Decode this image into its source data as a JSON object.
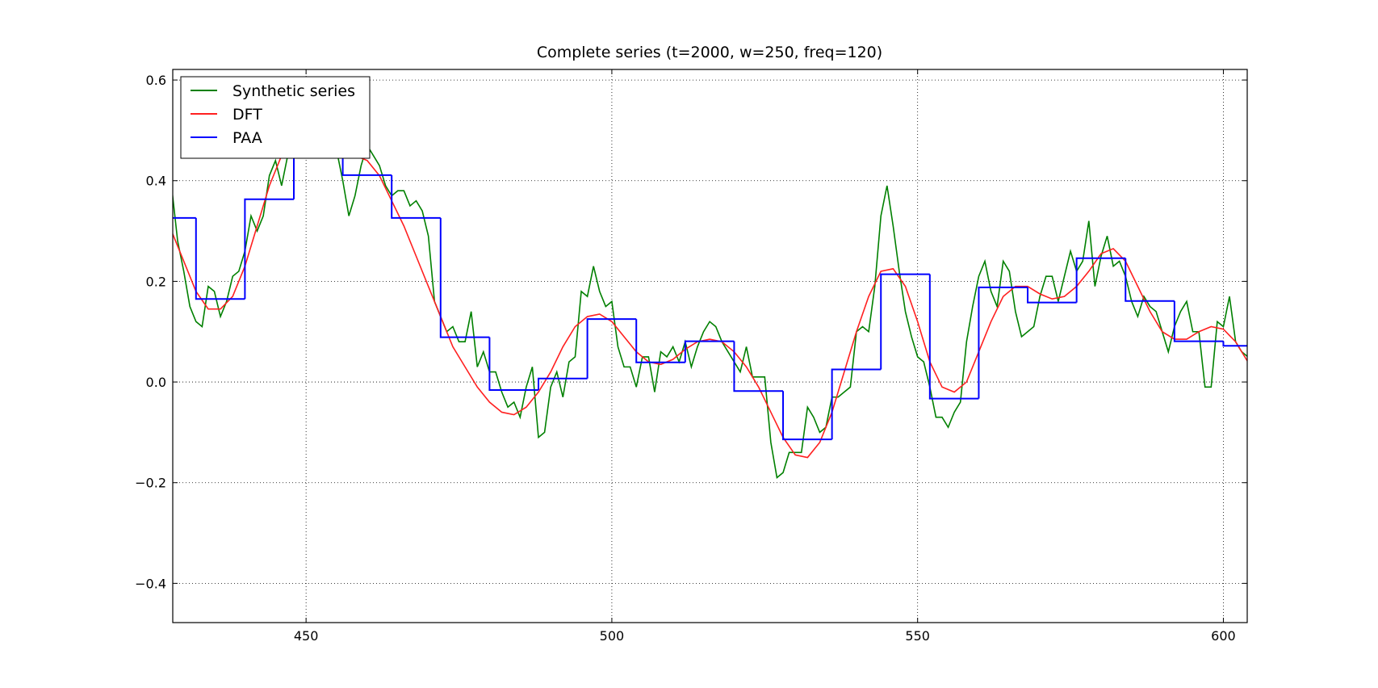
{
  "chart_data": {
    "type": "line",
    "title": "Complete series (t=2000, w=250, freq=120)",
    "xlim": [
      428.2,
      603.9
    ],
    "ylim": [
      -0.478,
      0.621
    ],
    "xticks": [
      450,
      500,
      550,
      600
    ],
    "yticks": [
      {
        "value": -0.4,
        "label": "−0.4"
      },
      {
        "value": -0.2,
        "label": "−0.2"
      },
      {
        "value": 0,
        "label": "0.0"
      },
      0.2,
      0.4,
      0.6
    ],
    "grid": true,
    "legend": "upper left",
    "series": [
      {
        "name": "Synthetic series",
        "color": "#008000",
        "kind": "line",
        "x": [
          428,
          429,
          430,
          431,
          432,
          433,
          434,
          435,
          436,
          437,
          438,
          439,
          440,
          441,
          442,
          443,
          444,
          445,
          446,
          447,
          448,
          449,
          450,
          451,
          452,
          453,
          454,
          455,
          456,
          457,
          458,
          459,
          460,
          461,
          462,
          463,
          464,
          465,
          466,
          467,
          468,
          469,
          470,
          471,
          472,
          473,
          474,
          475,
          476,
          477,
          478,
          479,
          480,
          481,
          482,
          483,
          484,
          485,
          486,
          487,
          488,
          489,
          490,
          491,
          492,
          493,
          494,
          495,
          496,
          497,
          498,
          499,
          500,
          501,
          502,
          503,
          504,
          505,
          506,
          507,
          508,
          509,
          510,
          511,
          512,
          513,
          514,
          515,
          516,
          517,
          518,
          519,
          520,
          521,
          522,
          523,
          524,
          525,
          526,
          527,
          528,
          529,
          530,
          531,
          532,
          533,
          534,
          535,
          536,
          537,
          538,
          539,
          540,
          541,
          542,
          543,
          544,
          545,
          546,
          547,
          548,
          549,
          550,
          551,
          552,
          553,
          554,
          555,
          556,
          557,
          558,
          559,
          560,
          561,
          562,
          563,
          564,
          565,
          566,
          567,
          568,
          569,
          570,
          571,
          572,
          573,
          574,
          575,
          576,
          577,
          578,
          579,
          580,
          581,
          582,
          583,
          584,
          585,
          586,
          587,
          588,
          589,
          590,
          591,
          592,
          593,
          594,
          595,
          596,
          597,
          598,
          599,
          600,
          601,
          602,
          603,
          604
        ],
        "values": [
          0.39,
          0.28,
          0.22,
          0.15,
          0.12,
          0.11,
          0.19,
          0.18,
          0.13,
          0.16,
          0.21,
          0.22,
          0.26,
          0.33,
          0.3,
          0.33,
          0.41,
          0.44,
          0.39,
          0.45,
          0.47,
          0.46,
          0.47,
          0.47,
          0.47,
          0.48,
          0.47,
          0.46,
          0.4,
          0.33,
          0.37,
          0.43,
          0.47,
          0.45,
          0.43,
          0.39,
          0.37,
          0.38,
          0.38,
          0.35,
          0.36,
          0.34,
          0.29,
          0.16,
          0.13,
          0.1,
          0.11,
          0.08,
          0.08,
          0.14,
          0.03,
          0.06,
          0.02,
          0.02,
          -0.02,
          -0.05,
          -0.04,
          -0.07,
          -0.01,
          0.03,
          -0.11,
          -0.1,
          -0.01,
          0.02,
          -0.03,
          0.04,
          0.05,
          0.18,
          0.17,
          0.23,
          0.18,
          0.15,
          0.16,
          0.07,
          0.03,
          0.03,
          -0.01,
          0.05,
          0.05,
          -0.02,
          0.06,
          0.05,
          0.07,
          0.04,
          0.08,
          0.03,
          0.07,
          0.1,
          0.12,
          0.11,
          0.08,
          0.06,
          0.04,
          0.02,
          0.07,
          0.01,
          0.01,
          0.01,
          -0.12,
          -0.19,
          -0.18,
          -0.14,
          -0.14,
          -0.14,
          -0.05,
          -0.07,
          -0.1,
          -0.09,
          -0.03,
          -0.03,
          -0.02,
          -0.01,
          0.1,
          0.11,
          0.1,
          0.19,
          0.33,
          0.39,
          0.31,
          0.22,
          0.14,
          0.09,
          0.05,
          0.04,
          -0.01,
          -0.07,
          -0.07,
          -0.09,
          -0.06,
          -0.04,
          0.08,
          0.15,
          0.21,
          0.24,
          0.18,
          0.15,
          0.24,
          0.22,
          0.14,
          0.09,
          0.1,
          0.11,
          0.17,
          0.21,
          0.21,
          0.16,
          0.21,
          0.26,
          0.22,
          0.24,
          0.32,
          0.19,
          0.25,
          0.29,
          0.23,
          0.24,
          0.21,
          0.16,
          0.13,
          0.17,
          0.15,
          0.14,
          0.1,
          0.06,
          0.11,
          0.14,
          0.16,
          0.1,
          0.1,
          -0.01,
          -0.01,
          0.12,
          0.11,
          0.17,
          0.08,
          0.06,
          0.05
        ]
      },
      {
        "name": "DFT",
        "color": "#ff2020",
        "kind": "line",
        "x": [
          428,
          430,
          432,
          434,
          436,
          438,
          440,
          442,
          444,
          446,
          448,
          450,
          452,
          454,
          456,
          458,
          460,
          462,
          464,
          466,
          468,
          470,
          472,
          474,
          476,
          478,
          480,
          482,
          484,
          486,
          488,
          490,
          492,
          494,
          496,
          498,
          500,
          502,
          504,
          506,
          508,
          510,
          512,
          514,
          516,
          518,
          520,
          522,
          524,
          526,
          528,
          530,
          532,
          534,
          536,
          538,
          540,
          542,
          544,
          546,
          548,
          550,
          552,
          554,
          556,
          558,
          560,
          562,
          564,
          566,
          568,
          570,
          572,
          574,
          576,
          578,
          580,
          582,
          584,
          586,
          588,
          590,
          592,
          594,
          596,
          598,
          600,
          602,
          604
        ],
        "values": [
          0.3,
          0.24,
          0.18,
          0.145,
          0.145,
          0.17,
          0.23,
          0.31,
          0.39,
          0.45,
          0.47,
          0.47,
          0.46,
          0.45,
          0.45,
          0.45,
          0.44,
          0.41,
          0.36,
          0.31,
          0.25,
          0.19,
          0.13,
          0.07,
          0.03,
          -0.01,
          -0.04,
          -0.06,
          -0.065,
          -0.05,
          -0.02,
          0.02,
          0.07,
          0.11,
          0.13,
          0.135,
          0.12,
          0.09,
          0.06,
          0.04,
          0.035,
          0.045,
          0.065,
          0.08,
          0.085,
          0.08,
          0.06,
          0.03,
          -0.01,
          -0.06,
          -0.11,
          -0.145,
          -0.15,
          -0.12,
          -0.06,
          0.02,
          0.1,
          0.17,
          0.22,
          0.225,
          0.19,
          0.12,
          0.04,
          -0.01,
          -0.02,
          0.0,
          0.06,
          0.12,
          0.17,
          0.19,
          0.19,
          0.175,
          0.165,
          0.17,
          0.19,
          0.22,
          0.255,
          0.265,
          0.24,
          0.19,
          0.14,
          0.1,
          0.085,
          0.085,
          0.1,
          0.11,
          0.105,
          0.08,
          0.04
        ]
      },
      {
        "name": "PAA",
        "color": "#0000ff",
        "kind": "step",
        "bins": [
          424,
          432,
          440,
          448,
          456,
          464,
          472,
          480,
          488,
          496,
          504,
          512,
          520,
          528,
          536,
          544,
          552,
          560,
          568,
          576,
          584,
          592,
          600,
          608
        ],
        "values": [
          0.326,
          0.165,
          0.363,
          0.47,
          0.411,
          0.326,
          0.089,
          -0.016,
          0.007,
          0.125,
          0.039,
          0.081,
          -0.018,
          -0.114,
          0.025,
          0.214,
          -0.033,
          0.188,
          0.158,
          0.246,
          0.161,
          0.081,
          0.072
        ]
      }
    ]
  }
}
